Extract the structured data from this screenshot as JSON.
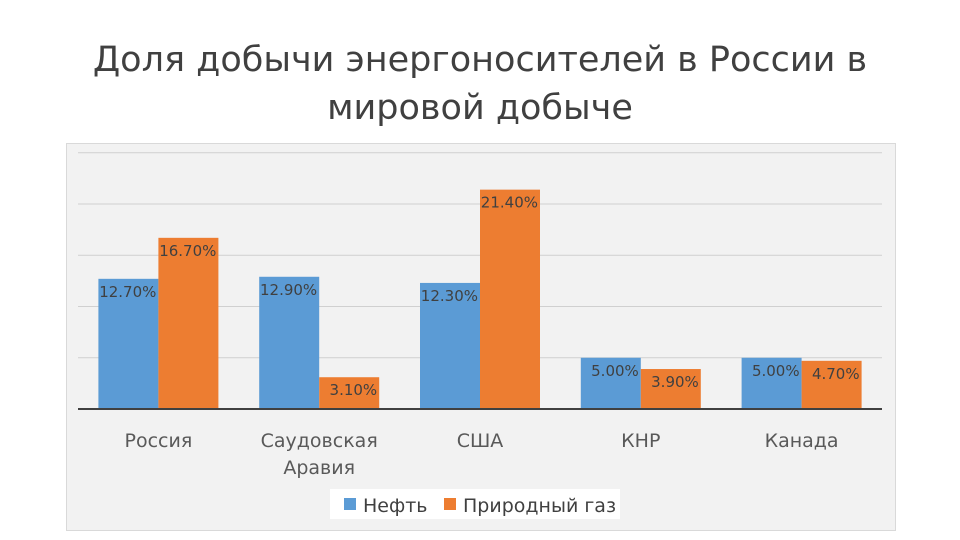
{
  "slide": {
    "title_line1": "Доля добычи энергоносителей в России в",
    "title_line2": "мировой добыче"
  },
  "chart_data": {
    "type": "bar",
    "categories": [
      [
        "Россия"
      ],
      [
        "Саудовская",
        "Аравия"
      ],
      [
        "США"
      ],
      [
        "КНР"
      ],
      [
        "Канада"
      ]
    ],
    "series": [
      {
        "name": "Нефть",
        "color": "#5b9bd5",
        "values": [
          12.7,
          12.9,
          12.3,
          5.0,
          5.0
        ],
        "labels": [
          "12.70%",
          "12.90%",
          "12.30%",
          "5.00%",
          "5.00%"
        ]
      },
      {
        "name": "Природный газ",
        "color": "#ed7d31",
        "values": [
          16.7,
          3.1,
          21.4,
          3.9,
          4.7
        ],
        "labels": [
          "16.70%",
          "3.10%",
          "21.40%",
          "3.90%",
          "4.70%"
        ]
      }
    ],
    "ylim": [
      0,
      25
    ],
    "grid": true,
    "legend": "bottom"
  }
}
